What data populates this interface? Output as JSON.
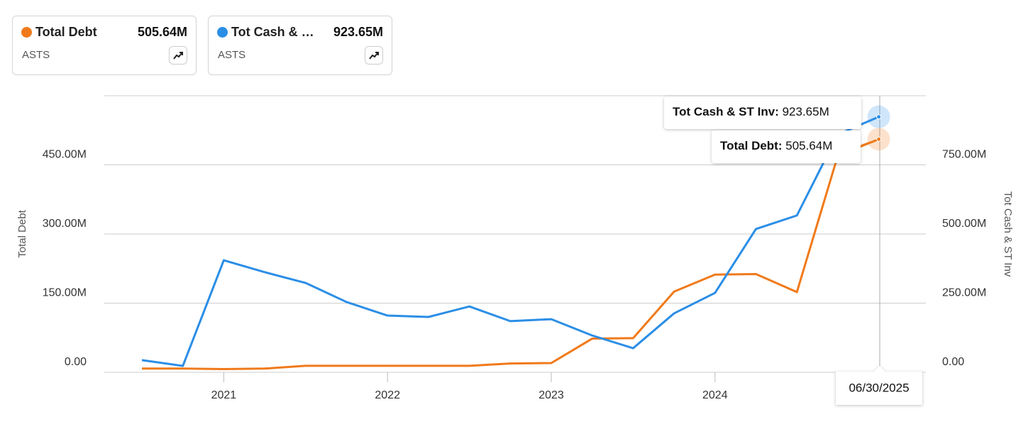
{
  "chart_data": {
    "type": "line",
    "categories": [
      null,
      null,
      "2021",
      null,
      null,
      null,
      "2022",
      null,
      null,
      null,
      "2023",
      null,
      null,
      null,
      "2024",
      null,
      null,
      null,
      null
    ],
    "series": [
      {
        "name": "Total Debt",
        "color": "#f07a1a",
        "ticker": "ASTS",
        "latest_label": "505.64M",
        "values": [
          8,
          8,
          7,
          8,
          14,
          14,
          14,
          14,
          14,
          19,
          20,
          73,
          74,
          175,
          212,
          213,
          174,
          470,
          505.64
        ]
      },
      {
        "name": "Tot Cash & ST Inv",
        "color": "#2b8ee6",
        "ticker": "ASTS",
        "latest_label": "923.65M",
        "axis": "y2",
        "values": [
          44,
          23,
          405,
          362,
          323,
          254,
          205,
          200,
          238,
          185,
          192,
          133,
          87,
          213,
          287,
          518,
          567,
          860,
          923.65
        ]
      }
    ],
    "ylabel": "Total Debt",
    "y2label": "Tot Cash & ST Inv",
    "ylim": [
      0,
      600
    ],
    "yticks": [
      {
        "value": 0,
        "label": "0.00"
      },
      {
        "value": 150,
        "label": "150.00M"
      },
      {
        "value": 300,
        "label": "300.00M"
      },
      {
        "value": 450,
        "label": "450.00M"
      }
    ],
    "y2lim": [
      0,
      1000
    ],
    "y2ticks": [
      {
        "value": 0,
        "label": "0.00"
      },
      {
        "value": 250,
        "label": "250.00M"
      },
      {
        "value": 500,
        "label": "500.00M"
      },
      {
        "value": 750,
        "label": "750.00M"
      }
    ],
    "grid": true,
    "tooltip": {
      "date": "06/30/2025",
      "items": [
        {
          "label": "Tot Cash & ST Inv:",
          "value_label": "923.65M"
        },
        {
          "label": "Total Debt:",
          "value_label": "505.64M"
        }
      ]
    }
  }
}
